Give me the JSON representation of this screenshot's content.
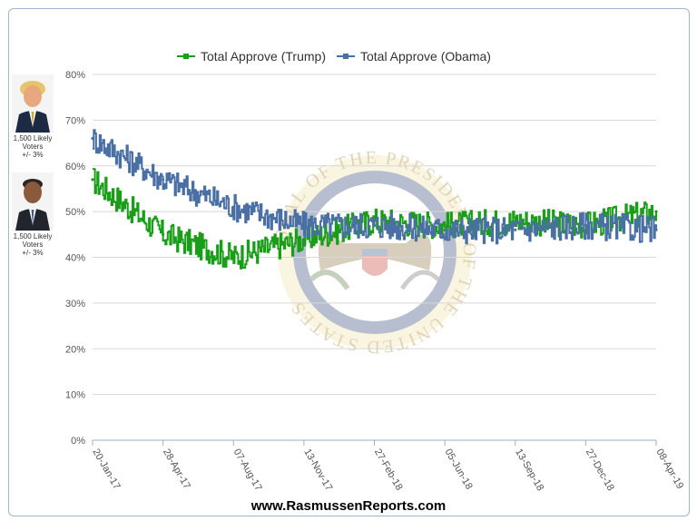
{
  "chart_data": {
    "type": "line",
    "title": "",
    "xlabel": "",
    "ylabel": "",
    "ylim": [
      0,
      80
    ],
    "y_ticks": [
      "0%",
      "10%",
      "20%",
      "30%",
      "40%",
      "50%",
      "60%",
      "70%",
      "80%"
    ],
    "x_ticks": [
      "20-Jan-17",
      "28-Apr-17",
      "07-Aug-17",
      "13-Nov-17",
      "27-Feb-18",
      "05-Jun-18",
      "13-Sep-18",
      "27-Dec-18",
      "08-Apr-19"
    ],
    "legend_position": "top-center",
    "grid": true,
    "series": [
      {
        "name": "Total Approve (Trump)",
        "color": "#1a9e1a",
        "x": [
          "20-Jan-17",
          "28-Apr-17",
          "07-Aug-17",
          "13-Nov-17",
          "27-Feb-18",
          "05-Jun-18",
          "13-Sep-18",
          "27-Dec-18",
          "08-Apr-19"
        ],
        "values": [
          57,
          45,
          40,
          44,
          48,
          47,
          48,
          47,
          50
        ]
      },
      {
        "name": "Total Approve (Obama)",
        "color": "#4a6fa5",
        "x": [
          "20-Jan-17",
          "28-Apr-17",
          "07-Aug-17",
          "13-Nov-17",
          "27-Feb-18",
          "05-Jun-18",
          "13-Sep-18",
          "27-Dec-18",
          "08-Apr-19"
        ],
        "values": [
          66,
          57,
          51,
          47,
          47,
          46,
          46,
          47,
          46
        ]
      }
    ]
  },
  "seal": {
    "text": "SEAL OF THE PRESIDENT OF THE UNITED STATES"
  },
  "sidebar": {
    "trump": {
      "caption1": "1,500 Likely",
      "caption2": "Voters",
      "caption3": "+/- 3%"
    },
    "obama": {
      "caption1": "1,500 Likely",
      "caption2": "Voters",
      "caption3": "+/- 3%"
    }
  },
  "footer": {
    "text": "www.RasmussenReports.com"
  }
}
